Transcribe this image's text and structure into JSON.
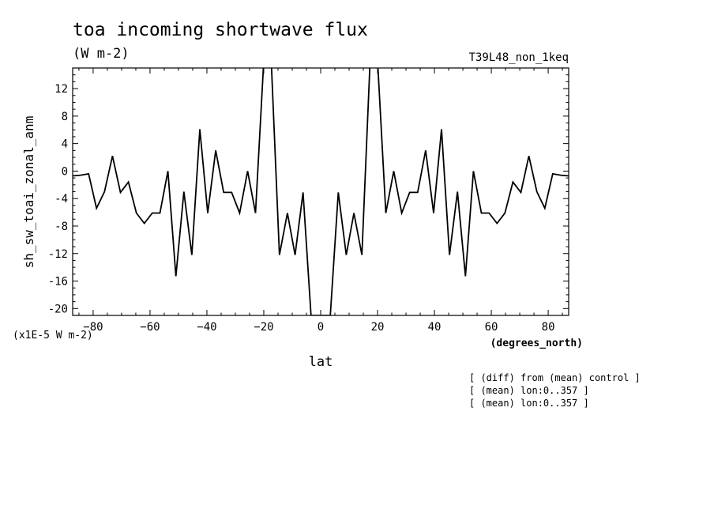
{
  "chart_data": {
    "type": "line",
    "title": "toa incoming shortwave flux",
    "subtitle": "(W m-2)",
    "experiment": "T39L48_non_1keq",
    "xlabel": "lat",
    "xunits": "(degrees_north)",
    "ylabel": "sh_sw_toai_zonal_anm",
    "yscale_note": "(x1E-5 W m-2)",
    "xlim": [
      -87.2,
      87.2
    ],
    "ylim": [
      -21,
      15
    ],
    "xticks": [
      -80,
      -60,
      -40,
      -20,
      0,
      20,
      40,
      60,
      80
    ],
    "ytick_labels": [
      "12",
      "8",
      "4",
      "0",
      "-4",
      "-8",
      "-12",
      "-16",
      "-20"
    ],
    "yticks": [
      12,
      8,
      4,
      0,
      -4,
      -8,
      -12,
      -16,
      -20
    ],
    "notes": [
      "[ (diff) from (mean) control ]",
      "[ (mean) lon:0..357 ]",
      "[ (mean) lon:0..357 ]"
    ],
    "series": [
      {
        "x": [
          -87.2,
          -84.4,
          -81.6,
          -78.8,
          -76.0,
          -73.2,
          -70.4,
          -67.6,
          -64.8,
          -62.0,
          -59.2,
          -56.5,
          -53.7,
          -50.9,
          -48.1,
          -45.3,
          -42.5,
          -39.7,
          -36.9,
          -34.1,
          -31.3,
          -28.5,
          -25.7,
          -22.9,
          -20.1,
          -17.3,
          -14.5,
          -11.7,
          -9.0,
          -6.2,
          -3.4,
          -0.6,
          0.6,
          3.4,
          6.2,
          9.0,
          11.7,
          14.5,
          17.3,
          20.1,
          22.9,
          25.7,
          28.5,
          31.3,
          34.1,
          36.9,
          39.7,
          42.5,
          45.3,
          48.1,
          50.9,
          53.7,
          56.5,
          59.2,
          62.0,
          64.8,
          67.6,
          70.4,
          73.2,
          76.0,
          78.8,
          81.6,
          84.4,
          87.2
        ],
        "y": [
          -0.7,
          -0.6,
          -0.4,
          -5.4,
          -3.0,
          2.2,
          -3.1,
          -1.6,
          -6.1,
          -7.6,
          -6.1,
          -6.1,
          0.0,
          -15.3,
          -3.0,
          -12.2,
          6.1,
          -6.1,
          3.0,
          -3.1,
          -3.1,
          -6.1,
          0.0,
          -6.1,
          15.3,
          15.3,
          -12.2,
          -6.1,
          -12.2,
          -3.1,
          -21.0,
          -21.0,
          -21.0,
          -21.0,
          -3.1,
          -12.2,
          -6.1,
          -12.2,
          15.3,
          15.3,
          -6.1,
          0.0,
          -6.1,
          -3.1,
          -3.1,
          3.0,
          -6.1,
          6.1,
          -12.2,
          -3.0,
          -15.3,
          0.0,
          -6.1,
          -6.1,
          -7.6,
          -6.1,
          -1.6,
          -3.1,
          2.2,
          -3.0,
          -5.4,
          -0.4,
          -0.6,
          -0.7
        ]
      }
    ]
  }
}
